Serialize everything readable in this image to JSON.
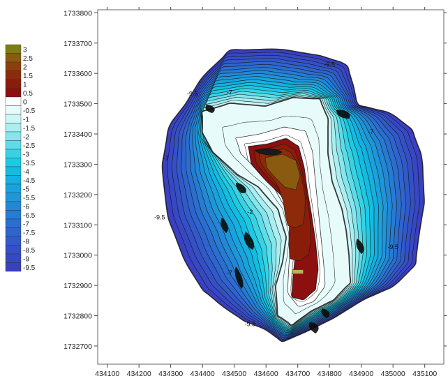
{
  "chart_data": {
    "type": "heatmap",
    "subtype": "filled-contour-map",
    "title": "",
    "xlabel": "",
    "ylabel": "",
    "xlim": [
      434070,
      435160
    ],
    "ylim": [
      1732640,
      1733810
    ],
    "x_ticks": [
      434100,
      434200,
      434300,
      434400,
      434500,
      434600,
      434700,
      434800,
      434900,
      435000,
      435100
    ],
    "x_tick_labels": [
      "434100",
      "434200",
      "434300",
      "434400",
      "434500",
      "434600",
      "434700",
      "434800",
      "434900",
      "435000",
      "435100"
    ],
    "y_ticks": [
      1732700,
      1732800,
      1732900,
      1733000,
      1733100,
      1733200,
      1733300,
      1733400,
      1733500,
      1733600,
      1733700,
      1733800
    ],
    "y_tick_labels": [
      "1732700",
      "1732800",
      "1732900",
      "1733000",
      "1733100",
      "1733200",
      "1733300",
      "1733400",
      "1733500",
      "1733600",
      "1733700",
      "1733800"
    ],
    "legend_position": "left",
    "legend": [
      {
        "label": "3",
        "color": "#7d7d14"
      },
      {
        "label": "2.5",
        "color": "#8a5a10"
      },
      {
        "label": "2",
        "color": "#8e3e0c"
      },
      {
        "label": "1.5",
        "color": "#8c2a0a"
      },
      {
        "label": "1",
        "color": "#8a1d0a"
      },
      {
        "label": "0.5",
        "color": "#8c1010"
      },
      {
        "label": "0",
        "color": "#ffffff"
      },
      {
        "label": "-0.5",
        "color": "#e8fbfb"
      },
      {
        "label": "-1",
        "color": "#cdf5f6"
      },
      {
        "label": "-1.5",
        "color": "#aaeef1"
      },
      {
        "label": "-2",
        "color": "#86e6ee"
      },
      {
        "label": "-2.5",
        "color": "#5edde9"
      },
      {
        "label": "-3",
        "color": "#37d3e5"
      },
      {
        "label": "-3.5",
        "color": "#1ec9e3"
      },
      {
        "label": "-4",
        "color": "#12bde2"
      },
      {
        "label": "-4.5",
        "color": "#14b0e0"
      },
      {
        "label": "-5",
        "color": "#18a3dd"
      },
      {
        "label": "-5.5",
        "color": "#1e96da"
      },
      {
        "label": "-6",
        "color": "#2288d6"
      },
      {
        "label": "-6.5",
        "color": "#267bd3"
      },
      {
        "label": "-7",
        "color": "#2a6ed0"
      },
      {
        "label": "-7.5",
        "color": "#2e64cd"
      },
      {
        "label": "-8",
        "color": "#3159ca"
      },
      {
        "label": "-8.5",
        "color": "#3450c7"
      },
      {
        "label": "-9",
        "color": "#3748c5"
      },
      {
        "label": "-9.5",
        "color": "#3a40c2"
      }
    ],
    "contour_labels": [
      {
        "text": "-9.5",
        "x": 434800,
        "y": 1733622
      },
      {
        "text": "-9.5",
        "x": 434368,
        "y": 1733525
      },
      {
        "text": "-7",
        "x": 434485,
        "y": 1733530
      },
      {
        "text": "-7",
        "x": 434930,
        "y": 1733400
      },
      {
        "text": "-7",
        "x": 434285,
        "y": 1733313
      },
      {
        "text": "-2",
        "x": 434550,
        "y": 1733135
      },
      {
        "text": "-9.5",
        "x": 434265,
        "y": 1733118
      },
      {
        "text": "-7",
        "x": 434485,
        "y": 1732935
      },
      {
        "text": "-9.5",
        "x": 435000,
        "y": 1733020
      },
      {
        "text": "-9.5",
        "x": 434550,
        "y": 1732765
      }
    ],
    "marker": {
      "label": "",
      "x": 434700,
      "y": 1732945
    }
  }
}
